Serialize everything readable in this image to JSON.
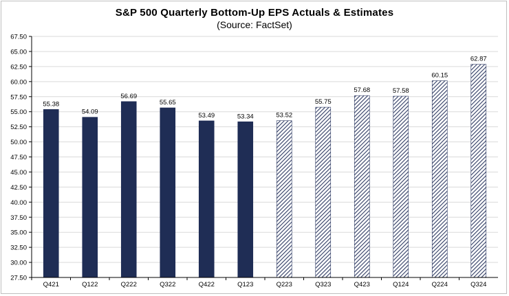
{
  "chart_data": {
    "type": "bar",
    "title": "S&P 500 Quarterly Bottom-Up EPS Actuals & Estimates",
    "subtitle": "(Source: FactSet)",
    "xlabel": "",
    "ylabel": "",
    "ylim": [
      27.5,
      67.5
    ],
    "ytick_step": 2.5,
    "grid": true,
    "legend": "none",
    "categories": [
      "Q421",
      "Q122",
      "Q222",
      "Q322",
      "Q422",
      "Q123",
      "Q223",
      "Q323",
      "Q423",
      "Q124",
      "Q224",
      "Q324"
    ],
    "values": [
      55.38,
      54.09,
      56.69,
      55.65,
      53.49,
      53.34,
      53.52,
      55.75,
      57.68,
      57.58,
      60.15,
      62.87
    ],
    "series_kind": [
      "actual",
      "actual",
      "actual",
      "actual",
      "actual",
      "actual",
      "estimate",
      "estimate",
      "estimate",
      "estimate",
      "estimate",
      "estimate"
    ],
    "colors": {
      "actual": "#1f2d55",
      "estimate": "#2f3b63",
      "grid": "#d9d9d9",
      "axis": "#000000"
    }
  }
}
